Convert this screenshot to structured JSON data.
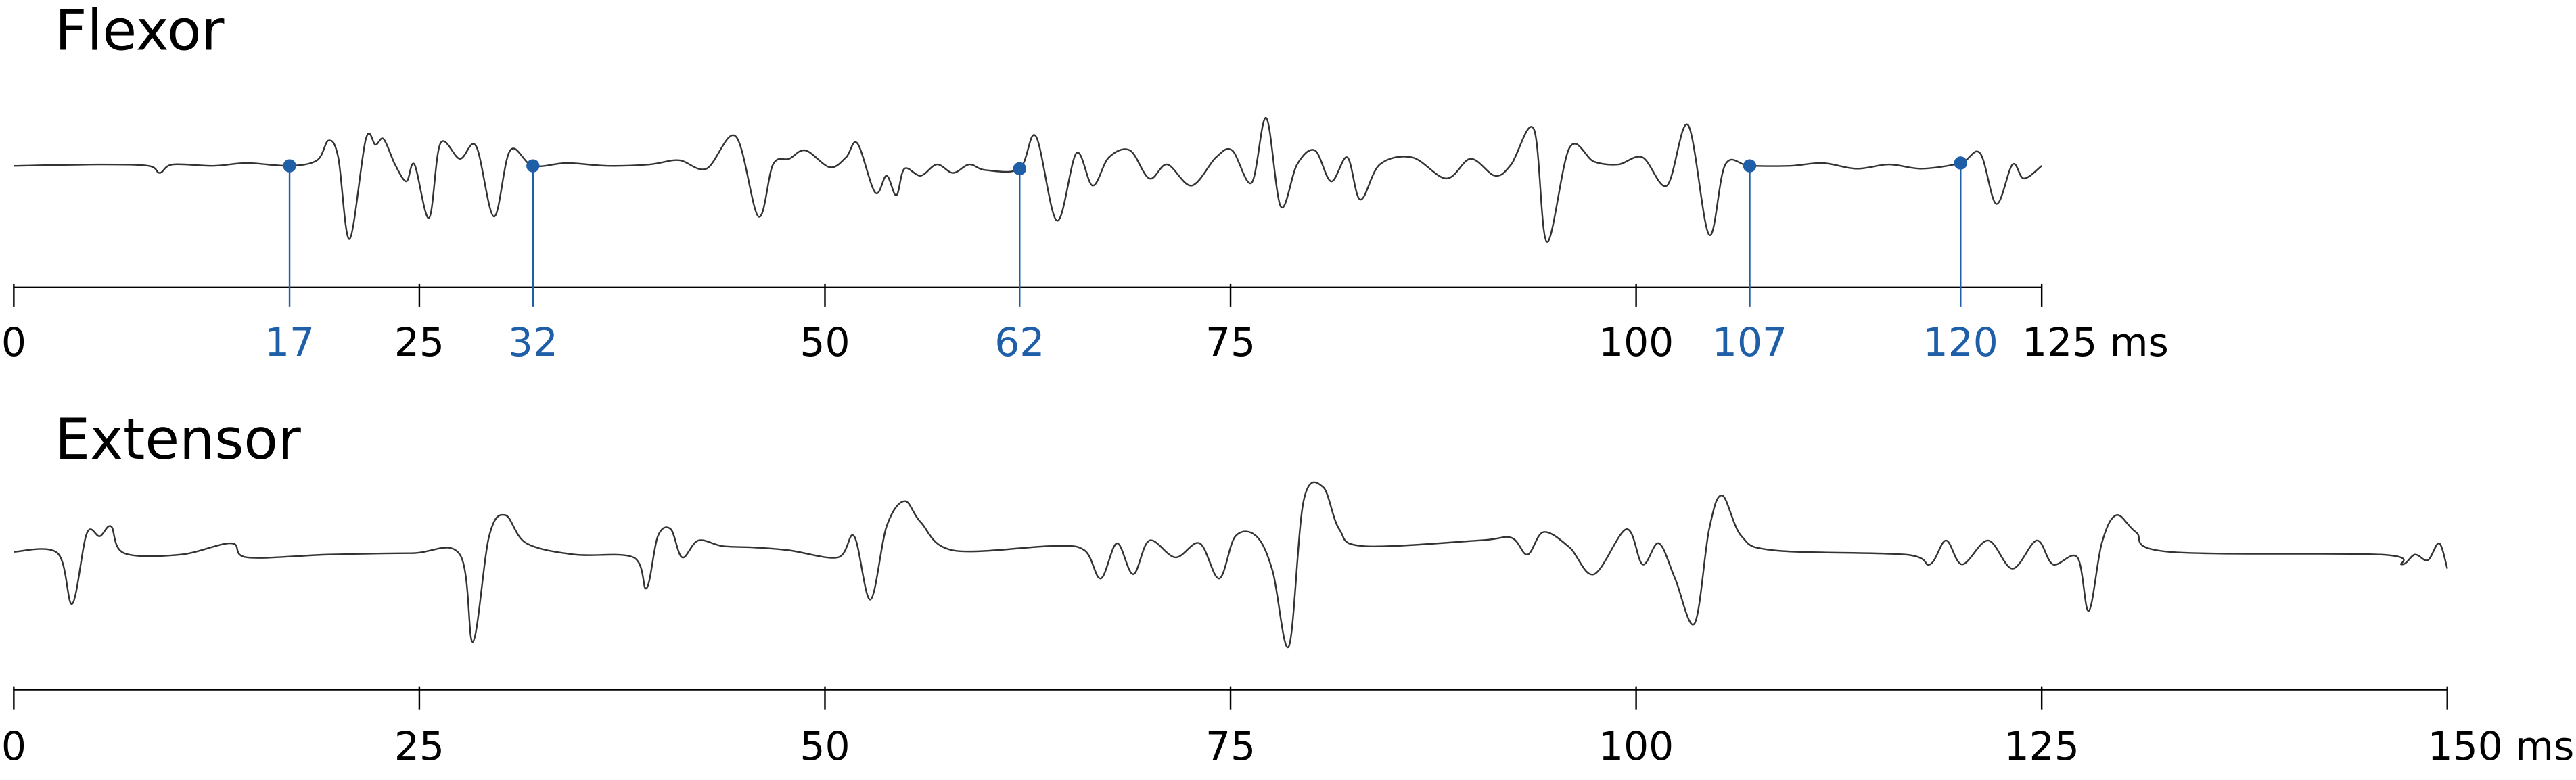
{
  "chart_data": [
    {
      "type": "line",
      "title": "Flexor",
      "x": [
        0,
        5.3,
        8.3,
        9.0,
        9.8,
        12.3,
        14.4,
        17,
        18.7,
        19.4,
        20.0,
        20.7,
        21.7,
        22.3,
        22.8,
        23.5,
        24.2,
        24.7,
        25.6,
        26.3,
        27.5,
        28.5,
        29.6,
        30.6,
        32,
        34.1,
        36.6,
        39.2,
        41,
        42.7,
        44.5,
        45.9,
        46.8,
        47.8,
        48.8,
        50.3,
        51.3,
        52,
        53.1,
        53.8,
        54.4,
        54.9,
        55.9,
        56.9,
        57.9,
        58.9,
        59.9,
        62,
        63,
        64.3,
        65.5,
        66.5,
        67.5,
        68.8,
        70,
        71.1,
        72.6,
        74.1,
        75.1,
        76.3,
        77.2,
        78.1,
        79.1,
        80.2,
        81.2,
        82.2,
        83,
        84.2,
        86.2,
        88.3,
        89.8,
        91.3,
        92.3,
        93.7,
        94.5,
        95.9,
        97.4,
        98.9,
        100.4,
        101.9,
        103.2,
        104.5,
        105.5,
        107,
        109.5,
        111.5,
        113.6,
        115.6,
        117.6,
        120,
        121.2,
        122.2,
        123.2,
        123.9,
        125
      ],
      "series": [
        {
          "color": "#333333",
          "values": [
            0,
            1,
            0,
            -5,
            1,
            0,
            2,
            0,
            4,
            18,
            6,
            -52,
            19,
            15,
            19,
            1,
            -11,
            1,
            -37,
            16,
            5,
            14,
            -36,
            11,
            0,
            2,
            0,
            1,
            4,
            -2,
            21,
            -36,
            1,
            5,
            11,
            -1,
            6,
            16,
            -19,
            -7,
            -21,
            -2,
            -7,
            1,
            -5,
            1,
            -3,
            -2,
            21,
            -39,
            9,
            -14,
            6,
            11,
            -9,
            1,
            -14,
            6,
            11,
            -12,
            34,
            -29,
            1,
            11,
            -11,
            6,
            -24,
            1,
            6,
            -9,
            5,
            -7,
            1,
            26,
            -54,
            13,
            3,
            1,
            6,
            -14,
            29,
            -49,
            1,
            0,
            0,
            2,
            -2,
            1,
            -2,
            2,
            9,
            -27,
            1,
            -9,
            0
          ]
        }
      ],
      "markers": {
        "color": "#1f5fa8",
        "x": [
          17,
          32,
          62,
          107,
          120
        ],
        "values": [
          0,
          0,
          -2,
          0,
          2
        ]
      },
      "xlim": [
        0,
        125
      ],
      "xticks": [
        0,
        25,
        50,
        75,
        100,
        {
          "value": 125,
          "label": "125 ms"
        }
      ],
      "ylim": [
        -70,
        70
      ]
    },
    {
      "type": "line",
      "title": "Extensor",
      "x": [
        0,
        2.7,
        3.6,
        4.5,
        5.3,
        6,
        6.8,
        10.3,
        13.4,
        14.4,
        19.4,
        24.5,
        27.5,
        28.3,
        29.3,
        30.3,
        31.6,
        34.6,
        38.2,
        39,
        39.7,
        40.5,
        41.2,
        42.2,
        43.7,
        45.7,
        47.8,
        50.8,
        51.8,
        52.8,
        53.8,
        54.9,
        55.9,
        57.9,
        64,
        66,
        67,
        68,
        69,
        70,
        71.6,
        73.1,
        74.3,
        75.3,
        76.6,
        77.6,
        78.6,
        79.5,
        80.7,
        81.7,
        83.2,
        90.3,
        92.3,
        93.3,
        94.3,
        95.9,
        97.4,
        99.4,
        100.4,
        101.4,
        102.4,
        103.6,
        104.5,
        105.3,
        106.5,
        108.5,
        116.6,
        118.1,
        119.1,
        120.1,
        121.7,
        123.2,
        124.7,
        125.7,
        127.2,
        127.9,
        128.7,
        129.6,
        130.8,
        132.8,
        145.9,
        147.2,
        148,
        148.8,
        149.5,
        150
      ],
      "series": [
        {
          "color": "#333333",
          "values": [
            0,
            -1,
            -37,
            13,
            11,
            18,
            -1,
            -2,
            6,
            -4,
            -2,
            -1,
            -2,
            -64,
            11,
            26,
            6,
            -2,
            -4,
            -26,
            11,
            16,
            -4,
            8,
            4,
            3,
            1,
            -4,
            11,
            -34,
            18,
            36,
            21,
            1,
            4,
            1,
            -19,
            6,
            -16,
            8,
            -4,
            6,
            -19,
            11,
            11,
            -14,
            -67,
            36,
            46,
            16,
            4,
            8,
            10,
            -2,
            14,
            3,
            -16,
            16,
            -9,
            6,
            -19,
            -51,
            16,
            40,
            11,
            1,
            -2,
            -9,
            8,
            -9,
            8,
            -12,
            8,
            -9,
            -4,
            -42,
            6,
            26,
            14,
            0,
            -2,
            -9,
            -2,
            -6,
            6,
            -12
          ]
        }
      ],
      "xlim": [
        0,
        150
      ],
      "xticks": [
        0,
        25,
        50,
        75,
        100,
        125,
        {
          "value": 150,
          "label": "150 ms"
        }
      ],
      "ylim": [
        -70,
        70
      ]
    }
  ]
}
